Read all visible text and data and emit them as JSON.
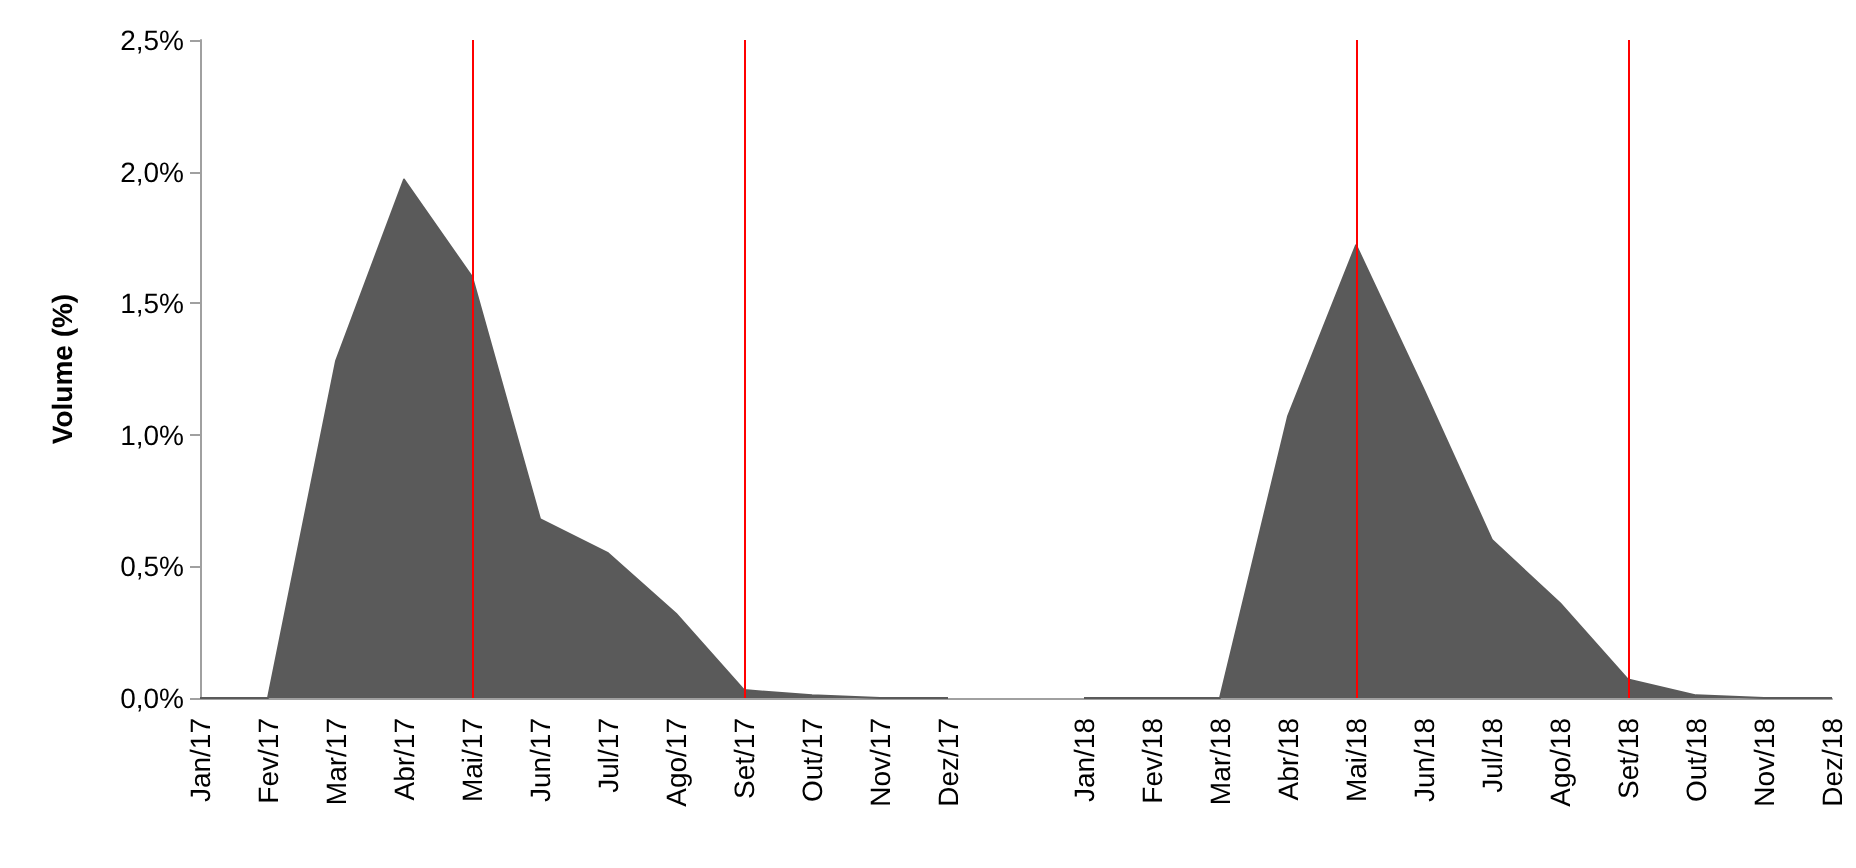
{
  "chart_data": {
    "type": "area",
    "ylabel": "Volume (%)",
    "categories": [
      "Jan/17",
      "Fev/17",
      "Mar/17",
      "Abr/17",
      "Mai/17",
      "Jun/17",
      "Jul/17",
      "Ago/17",
      "Set/17",
      "Out/17",
      "Nov/17",
      "Dez/17",
      null,
      "Jan/18",
      "Fev/18",
      "Mar/18",
      "Abr/18",
      "Mai/18",
      "Jun/18",
      "Jul/18",
      "Ago/18",
      "Set/18",
      "Out/18",
      "Nov/18",
      "Dez/18"
    ],
    "series": [
      {
        "color": "#5a5a5a",
        "values": [
          0,
          0,
          1.28,
          1.97,
          1.6,
          0.68,
          0.55,
          0.32,
          0.03,
          0.01,
          0,
          0,
          null,
          0,
          0,
          0,
          1.07,
          1.72,
          1.17,
          0.6,
          0.36,
          0.07,
          0.01,
          0,
          0
        ]
      }
    ],
    "ylim": [
      0,
      2.5
    ],
    "yticks": [
      {
        "value": 0,
        "label": "0,0%"
      },
      {
        "value": 0.5,
        "label": "0,5%"
      },
      {
        "value": 1,
        "label": "1,0%"
      },
      {
        "value": 1.5,
        "label": "1,5%"
      },
      {
        "value": 2,
        "label": "2,0%"
      },
      {
        "value": 2.5,
        "label": "2,5%"
      }
    ],
    "ref_lines": [
      {
        "axis": "x",
        "value": "Mai/17",
        "color": "#ff0000"
      },
      {
        "axis": "x",
        "value": "Set/17",
        "color": "#ff0000"
      },
      {
        "axis": "x",
        "value": "Mai/18",
        "color": "#ff0000"
      },
      {
        "axis": "x",
        "value": "Set/18",
        "color": "#ff0000"
      }
    ],
    "grid": false
  }
}
